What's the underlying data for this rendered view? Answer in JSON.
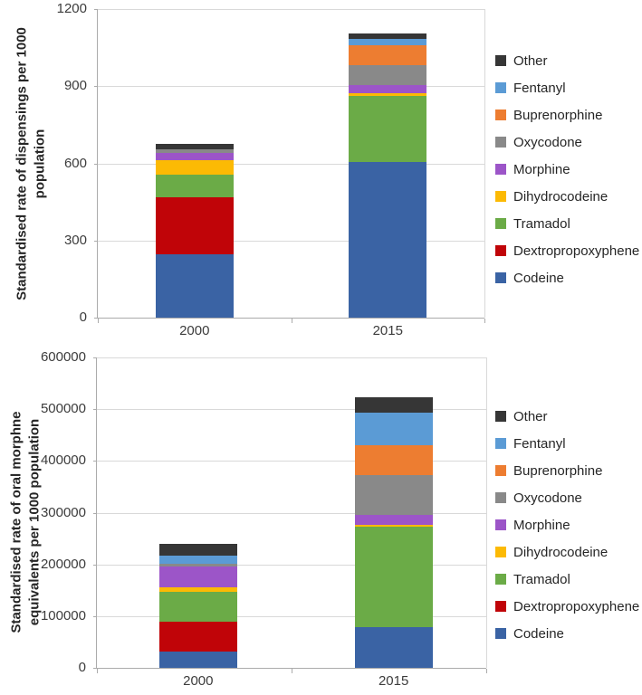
{
  "page": {
    "background": "#FFFFFF"
  },
  "chart_data": [
    {
      "type": "bar",
      "variant": "stacked-column",
      "title": "",
      "xlabel": "",
      "ylabel": "Standardised rate of dispensings per 1000 population",
      "ylabel_lines": [
        "Standardised rate of dispensings per 1000",
        "population"
      ],
      "categories": [
        "2000",
        "2015"
      ],
      "ylim": [
        0,
        1200
      ],
      "yticks": [
        0,
        300,
        600,
        900,
        1200
      ],
      "grid": true,
      "legend_position": "right",
      "legend_order_top_to_bottom": [
        "Other",
        "Fentanyl",
        "Buprenorphine",
        "Oxycodone",
        "Morphine",
        "Dihydrocodeine",
        "Tramadol",
        "Dextropropoxyphene",
        "Codeine"
      ],
      "totals": [
        675,
        1104
      ],
      "series": [
        {
          "name": "Codeine",
          "color": "#3A63A4",
          "values": [
            246,
            605
          ]
        },
        {
          "name": "Dextropropoxyphene",
          "color": "#C00408",
          "values": [
            222,
            0
          ]
        },
        {
          "name": "Tramadol",
          "color": "#6BAB47",
          "values": [
            88,
            257
          ]
        },
        {
          "name": "Dihydrocodeine",
          "color": "#FCBA04",
          "values": [
            56,
            10
          ]
        },
        {
          "name": "Morphine",
          "color": "#9C55C8",
          "values": [
            28,
            31
          ]
        },
        {
          "name": "Oxycodone",
          "color": "#898989",
          "values": [
            14,
            78
          ]
        },
        {
          "name": "Buprenorphine",
          "color": "#ED7D31",
          "values": [
            0,
            77
          ]
        },
        {
          "name": "Fentanyl",
          "color": "#5B9BD5",
          "values": [
            0,
            25
          ]
        },
        {
          "name": "Other",
          "color": "#363636",
          "values": [
            21,
            21
          ]
        }
      ]
    },
    {
      "type": "bar",
      "variant": "stacked-column",
      "title": "",
      "xlabel": "",
      "ylabel": "Standardised rate of oral morphne equivalents per 1000 population",
      "ylabel_lines": [
        "Standardised rate of oral morphne",
        "equivalents per 1000 population"
      ],
      "categories": [
        "2000",
        "2015"
      ],
      "ylim": [
        0,
        600000
      ],
      "yticks": [
        0,
        100000,
        200000,
        300000,
        400000,
        500000,
        600000
      ],
      "grid": true,
      "legend_position": "right",
      "legend_order_top_to_bottom": [
        "Other",
        "Fentanyl",
        "Buprenorphine",
        "Oxycodone",
        "Morphine",
        "Dihydrocodeine",
        "Tramadol",
        "Dextropropoxyphene",
        "Codeine"
      ],
      "totals": [
        240000,
        523000
      ],
      "series": [
        {
          "name": "Codeine",
          "color": "#3A63A4",
          "values": [
            31000,
            79000
          ]
        },
        {
          "name": "Dextropropoxyphene",
          "color": "#C00408",
          "values": [
            58000,
            0
          ]
        },
        {
          "name": "Tramadol",
          "color": "#6BAB47",
          "values": [
            58000,
            194000
          ]
        },
        {
          "name": "Dihydrocodeine",
          "color": "#FCBA04",
          "values": [
            9000,
            3000
          ]
        },
        {
          "name": "Morphine",
          "color": "#9C55C8",
          "values": [
            40000,
            19000
          ]
        },
        {
          "name": "Oxycodone",
          "color": "#898989",
          "values": [
            5000,
            77000
          ]
        },
        {
          "name": "Buprenorphine",
          "color": "#ED7D31",
          "values": [
            0,
            58000
          ]
        },
        {
          "name": "Fentanyl",
          "color": "#5B9BD5",
          "values": [
            16000,
            63000
          ]
        },
        {
          "name": "Other",
          "color": "#363636",
          "values": [
            23000,
            30000
          ]
        }
      ]
    }
  ]
}
